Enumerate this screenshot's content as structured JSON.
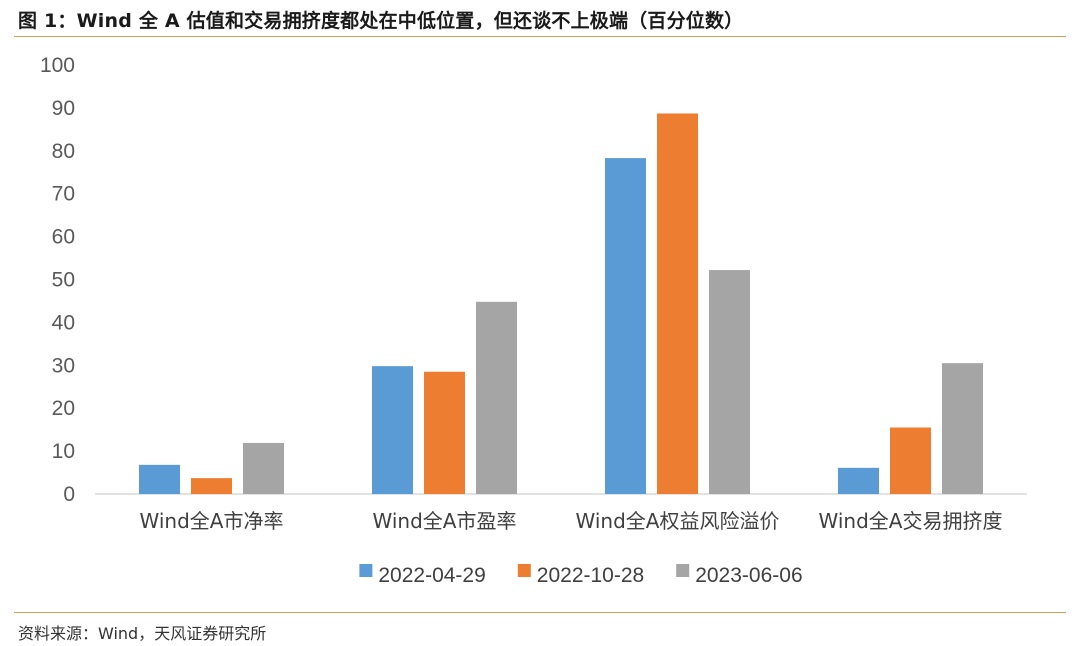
{
  "figure": {
    "title": "图 1：Wind 全 A 估值和交易拥挤度都处在中低位置，但还谈不上极端（百分位数）",
    "source": "资料来源：Wind，天风证券研究所"
  },
  "chart_data": {
    "type": "bar",
    "categories": [
      "Wind全A市净率",
      "Wind全A市盈率",
      "Wind全A权益风险溢价",
      "Wind全A交易拥挤度"
    ],
    "series": [
      {
        "name": "2022-04-29",
        "color": "#5b9bd5",
        "values": [
          6.8,
          29.8,
          78.3,
          6.1
        ]
      },
      {
        "name": "2022-10-28",
        "color": "#ed7d31",
        "values": [
          3.7,
          28.5,
          88.7,
          15.5
        ]
      },
      {
        "name": "2023-06-06",
        "color": "#a5a5a5",
        "values": [
          11.9,
          44.8,
          52.2,
          30.5
        ]
      }
    ],
    "ylim": [
      0,
      100
    ],
    "yticks": [
      0,
      10,
      20,
      30,
      40,
      50,
      60,
      70,
      80,
      90,
      100
    ],
    "grid": false,
    "legend": "bottom"
  }
}
